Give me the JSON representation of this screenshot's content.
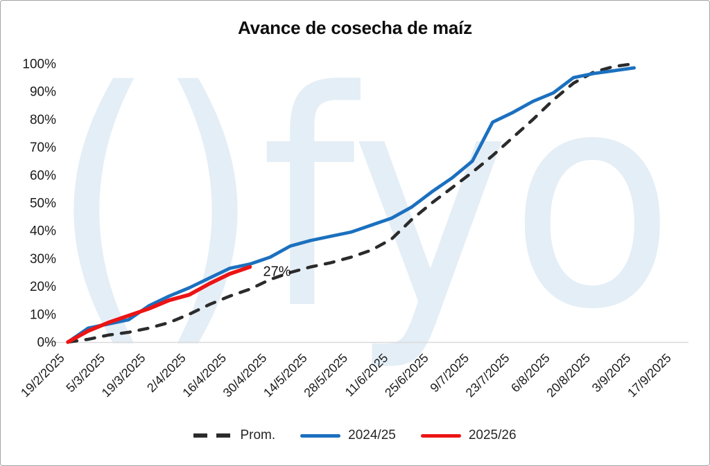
{
  "title": "Avance de cosecha de maíz",
  "watermark": "()fyo",
  "annotation": {
    "text": "27%",
    "series": "2025/26"
  },
  "legend": [
    {
      "label": "Prom.",
      "color": "#2b2b2b",
      "style": "dashed"
    },
    {
      "label": "2024/25",
      "color": "#1b70bf",
      "style": "solid"
    },
    {
      "label": "2025/26",
      "color": "#ec1414",
      "style": "solid"
    }
  ],
  "colors": {
    "axis_line": "#d9d9d9",
    "tick_text": "#1a1a1a",
    "watermark": "#e4eef6",
    "annotation_text": "#111111"
  },
  "chart_data": {
    "type": "line",
    "title": "Avance de cosecha de maíz",
    "xlabel": "",
    "ylabel": "",
    "ylim": [
      0,
      100
    ],
    "grid": false,
    "legend_position": "bottom",
    "y_tick_labels": [
      "0%",
      "10%",
      "20%",
      "30%",
      "40%",
      "50%",
      "60%",
      "70%",
      "80%",
      "90%",
      "100%"
    ],
    "x_tick_labels": [
      "19/2/2025",
      "5/3/2025",
      "19/3/2025",
      "2/4/2025",
      "16/4/2025",
      "30/4/2025",
      "14/5/2025",
      "28/5/2025",
      "11/6/2025",
      "25/6/2025",
      "9/7/2025",
      "23/7/2025",
      "6/8/2025",
      "20/8/2025",
      "3/9/2025",
      "17/9/2025"
    ],
    "x_weekly_dates": [
      "19/2/2025",
      "26/2/2025",
      "5/3/2025",
      "12/3/2025",
      "19/3/2025",
      "26/3/2025",
      "2/4/2025",
      "9/4/2025",
      "16/4/2025",
      "23/4/2025",
      "30/4/2025",
      "7/5/2025",
      "14/5/2025",
      "21/5/2025",
      "28/5/2025",
      "4/6/2025",
      "11/6/2025",
      "18/6/2025",
      "25/6/2025",
      "2/7/2025",
      "9/7/2025",
      "16/7/2025",
      "23/7/2025",
      "30/7/2025",
      "6/8/2025",
      "13/8/2025",
      "20/8/2025",
      "27/8/2025",
      "3/9/2025"
    ],
    "series": [
      {
        "name": "Prom.",
        "color": "#2b2b2b",
        "dashed": true,
        "values": [
          0,
          1,
          2.5,
          3.5,
          5,
          7,
          10,
          13.5,
          16.5,
          19,
          22.5,
          25,
          27,
          28.5,
          30.5,
          33,
          37,
          44,
          50,
          55.5,
          61,
          67,
          73.5,
          80,
          87,
          93,
          97,
          99,
          100
        ]
      },
      {
        "name": "2024/25",
        "color": "#1b70bf",
        "dashed": false,
        "values": [
          0,
          5,
          6.5,
          8,
          13,
          16.5,
          19.5,
          23,
          26.5,
          28,
          30.5,
          34.5,
          36.5,
          38,
          39.5,
          42,
          44.5,
          48.5,
          54,
          59,
          65,
          79,
          82.5,
          86.5,
          89.5,
          95,
          96.5,
          97.5,
          98.5
        ]
      },
      {
        "name": "2025/26",
        "color": "#ec1414",
        "dashed": false,
        "values": [
          0,
          4,
          7,
          9.5,
          12,
          15,
          17,
          21,
          24.5,
          27
        ]
      }
    ]
  }
}
